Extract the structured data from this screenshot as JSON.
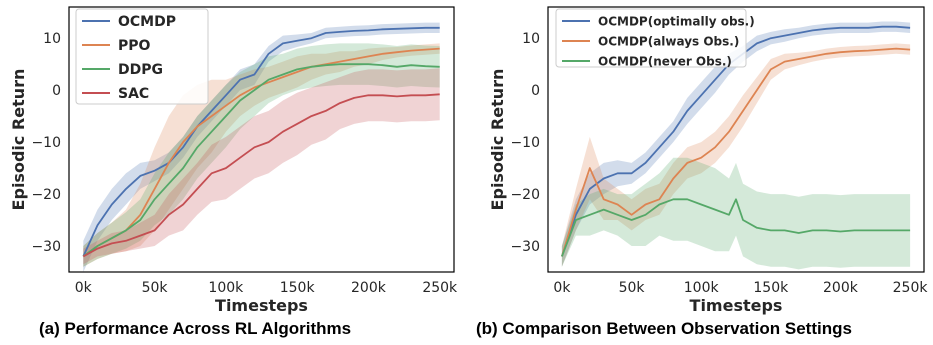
{
  "captions": {
    "a": "(a) Performance Across RL Algorithms",
    "b": "(b) Comparison Between Observation Settings"
  },
  "chart_data": [
    {
      "type": "line",
      "xlabel": "Timesteps",
      "ylabel": "Episodic Return",
      "xlim": [
        -10000,
        260000
      ],
      "ylim": [
        -35,
        16
      ],
      "x_ticks": [
        0,
        50000,
        100000,
        150000,
        200000,
        250000
      ],
      "x_tick_labels": [
        "0k",
        "50k",
        "100k",
        "150k",
        "200k",
        "250k"
      ],
      "y_ticks": [
        -30,
        -20,
        -10,
        0,
        10
      ],
      "y_tick_labels": [
        "−30",
        "−20",
        "−10",
        "0",
        "10"
      ],
      "grid": false,
      "legend_position": "top-left",
      "series": [
        {
          "name": "OCMDP",
          "color": "#4c72b0",
          "x": [
            0,
            10000,
            20000,
            30000,
            40000,
            50000,
            60000,
            70000,
            80000,
            90000,
            100000,
            110000,
            120000,
            130000,
            140000,
            150000,
            160000,
            170000,
            180000,
            190000,
            200000,
            210000,
            220000,
            230000,
            240000,
            250000
          ],
          "y": [
            -32,
            -26,
            -22,
            -19,
            -16.5,
            -15.5,
            -14,
            -11,
            -7,
            -4,
            -1,
            2,
            3,
            7,
            9,
            9.5,
            10,
            11,
            11.2,
            11.4,
            11.5,
            11.7,
            11.8,
            11.9,
            12,
            12
          ],
          "spread": [
            3,
            3,
            3,
            3,
            2.5,
            2,
            2,
            2,
            2,
            2,
            2,
            2,
            2,
            1.5,
            1.5,
            1.2,
            1,
            1,
            1,
            1,
            1,
            1,
            1,
            1,
            1,
            1
          ]
        },
        {
          "name": "PPO",
          "color": "#dd8452",
          "x": [
            0,
            10000,
            20000,
            30000,
            40000,
            50000,
            60000,
            70000,
            80000,
            90000,
            100000,
            110000,
            120000,
            130000,
            140000,
            150000,
            160000,
            170000,
            180000,
            190000,
            200000,
            210000,
            220000,
            230000,
            240000,
            250000
          ],
          "y": [
            -32,
            -30,
            -28.5,
            -27,
            -24,
            -19,
            -14,
            -10,
            -7,
            -5,
            -3,
            -1,
            0.5,
            1.5,
            2.5,
            3.5,
            4.5,
            5,
            5.5,
            6,
            6.5,
            7,
            7.3,
            7.6,
            7.8,
            8
          ],
          "spread": [
            2,
            2.5,
            3,
            4,
            6,
            8,
            9,
            9,
            8,
            7,
            5,
            4,
            3.5,
            3,
            3,
            3,
            2.5,
            2,
            2,
            1.5,
            1.5,
            1.2,
            1,
            1,
            1,
            1
          ]
        },
        {
          "name": "DDPG",
          "color": "#55a868",
          "x": [
            0,
            10000,
            20000,
            30000,
            40000,
            50000,
            60000,
            70000,
            80000,
            90000,
            100000,
            110000,
            120000,
            130000,
            140000,
            150000,
            160000,
            170000,
            180000,
            190000,
            200000,
            210000,
            220000,
            230000,
            240000,
            250000
          ],
          "y": [
            -32,
            -30,
            -28.5,
            -27,
            -25,
            -21,
            -18,
            -15,
            -11,
            -8,
            -5,
            -2,
            0,
            2,
            3,
            4,
            4.5,
            4.8,
            5,
            5,
            5,
            4.8,
            4.5,
            4.8,
            4.6,
            4.5
          ],
          "spread": [
            2,
            2.5,
            3,
            3.5,
            4,
            5,
            6,
            6,
            6,
            6,
            6,
            5.5,
            5,
            4.5,
            4,
            4,
            4,
            4,
            4,
            4,
            4,
            4,
            4,
            4,
            4,
            4
          ]
        },
        {
          "name": "SAC",
          "color": "#c44e52",
          "x": [
            0,
            10000,
            20000,
            30000,
            40000,
            50000,
            60000,
            70000,
            80000,
            90000,
            100000,
            110000,
            120000,
            130000,
            140000,
            150000,
            160000,
            170000,
            180000,
            190000,
            200000,
            210000,
            220000,
            230000,
            240000,
            250000
          ],
          "y": [
            -32,
            -30.5,
            -29.5,
            -29,
            -28,
            -27,
            -24,
            -22,
            -19,
            -16,
            -15,
            -13,
            -11,
            -10,
            -8,
            -6.5,
            -5,
            -4,
            -2.5,
            -1.5,
            -1,
            -1,
            -1.2,
            -1,
            -1,
            -0.8
          ],
          "spread": [
            1.5,
            1.5,
            2,
            2,
            2.5,
            3,
            4,
            5,
            5,
            5.5,
            6,
            6,
            6,
            6,
            6,
            6,
            5.5,
            5.5,
            5,
            5,
            5,
            5,
            5,
            5,
            5,
            5
          ]
        }
      ]
    },
    {
      "type": "line",
      "xlabel": "Timesteps",
      "ylabel": "Episodic Return",
      "xlim": [
        -10000,
        260000
      ],
      "ylim": [
        -35,
        16
      ],
      "x_ticks": [
        0,
        50000,
        100000,
        150000,
        200000,
        250000
      ],
      "x_tick_labels": [
        "0k",
        "50k",
        "100k",
        "150k",
        "200k",
        "250k"
      ],
      "y_ticks": [
        -30,
        -20,
        -10,
        0,
        10
      ],
      "y_tick_labels": [
        "−30",
        "−20",
        "−10",
        "0",
        "10"
      ],
      "grid": false,
      "legend_position": "top-left",
      "series": [
        {
          "name": "OCMDP(optimally obs.)",
          "color": "#4c72b0",
          "x": [
            0,
            10000,
            20000,
            30000,
            40000,
            50000,
            60000,
            70000,
            80000,
            90000,
            100000,
            110000,
            120000,
            130000,
            140000,
            150000,
            160000,
            170000,
            180000,
            190000,
            200000,
            210000,
            220000,
            230000,
            240000,
            250000
          ],
          "y": [
            -32,
            -24,
            -19,
            -17,
            -16,
            -16,
            -14,
            -11,
            -8,
            -4,
            -1,
            2,
            5,
            7,
            9,
            10,
            10.5,
            11,
            11.5,
            11.8,
            12,
            12,
            12,
            12.2,
            12.2,
            12
          ],
          "spread": [
            2,
            3,
            3,
            3,
            2.5,
            2,
            2,
            2,
            2,
            2.5,
            2.5,
            2.5,
            2,
            1.5,
            1.5,
            1.2,
            1.2,
            1,
            1,
            1,
            1,
            1,
            1,
            1,
            1,
            1
          ]
        },
        {
          "name": "OCMDP(always Obs.)",
          "color": "#dd8452",
          "x": [
            0,
            10000,
            20000,
            30000,
            40000,
            50000,
            60000,
            70000,
            80000,
            90000,
            100000,
            110000,
            120000,
            130000,
            140000,
            150000,
            160000,
            170000,
            180000,
            190000,
            200000,
            210000,
            220000,
            230000,
            240000,
            250000
          ],
          "y": [
            -32,
            -23,
            -15,
            -21,
            -22,
            -24,
            -22,
            -21,
            -17,
            -14,
            -13,
            -11,
            -8,
            -4,
            0,
            4,
            5.5,
            6,
            6.5,
            7,
            7.3,
            7.5,
            7.6,
            7.8,
            8,
            7.8
          ],
          "spread": [
            2,
            4,
            6,
            4,
            3,
            3,
            3,
            3,
            3,
            3,
            3,
            3,
            3,
            3,
            2.5,
            2,
            1.5,
            1.2,
            1,
            1,
            1,
            1,
            1,
            1,
            1,
            1
          ]
        },
        {
          "name": "OCMDP(never Obs.)",
          "color": "#55a868",
          "x": [
            0,
            10000,
            20000,
            30000,
            40000,
            50000,
            60000,
            70000,
            80000,
            90000,
            100000,
            110000,
            120000,
            125000,
            130000,
            140000,
            150000,
            160000,
            170000,
            180000,
            190000,
            200000,
            210000,
            220000,
            230000,
            240000,
            250000
          ],
          "y": [
            -32,
            -25,
            -24,
            -23,
            -24,
            -25,
            -24,
            -22,
            -21,
            -21,
            -22,
            -23,
            -24,
            -21,
            -25,
            -26.5,
            -27,
            -27,
            -27.5,
            -27,
            -27,
            -27.2,
            -27,
            -27,
            -27,
            -27,
            -27
          ],
          "spread": [
            2,
            3,
            4,
            4,
            4,
            5,
            6,
            6,
            8,
            8,
            8,
            8,
            7,
            7,
            7,
            7,
            7,
            7,
            7,
            7,
            7,
            7,
            7,
            7,
            7,
            7,
            7
          ]
        }
      ]
    }
  ]
}
